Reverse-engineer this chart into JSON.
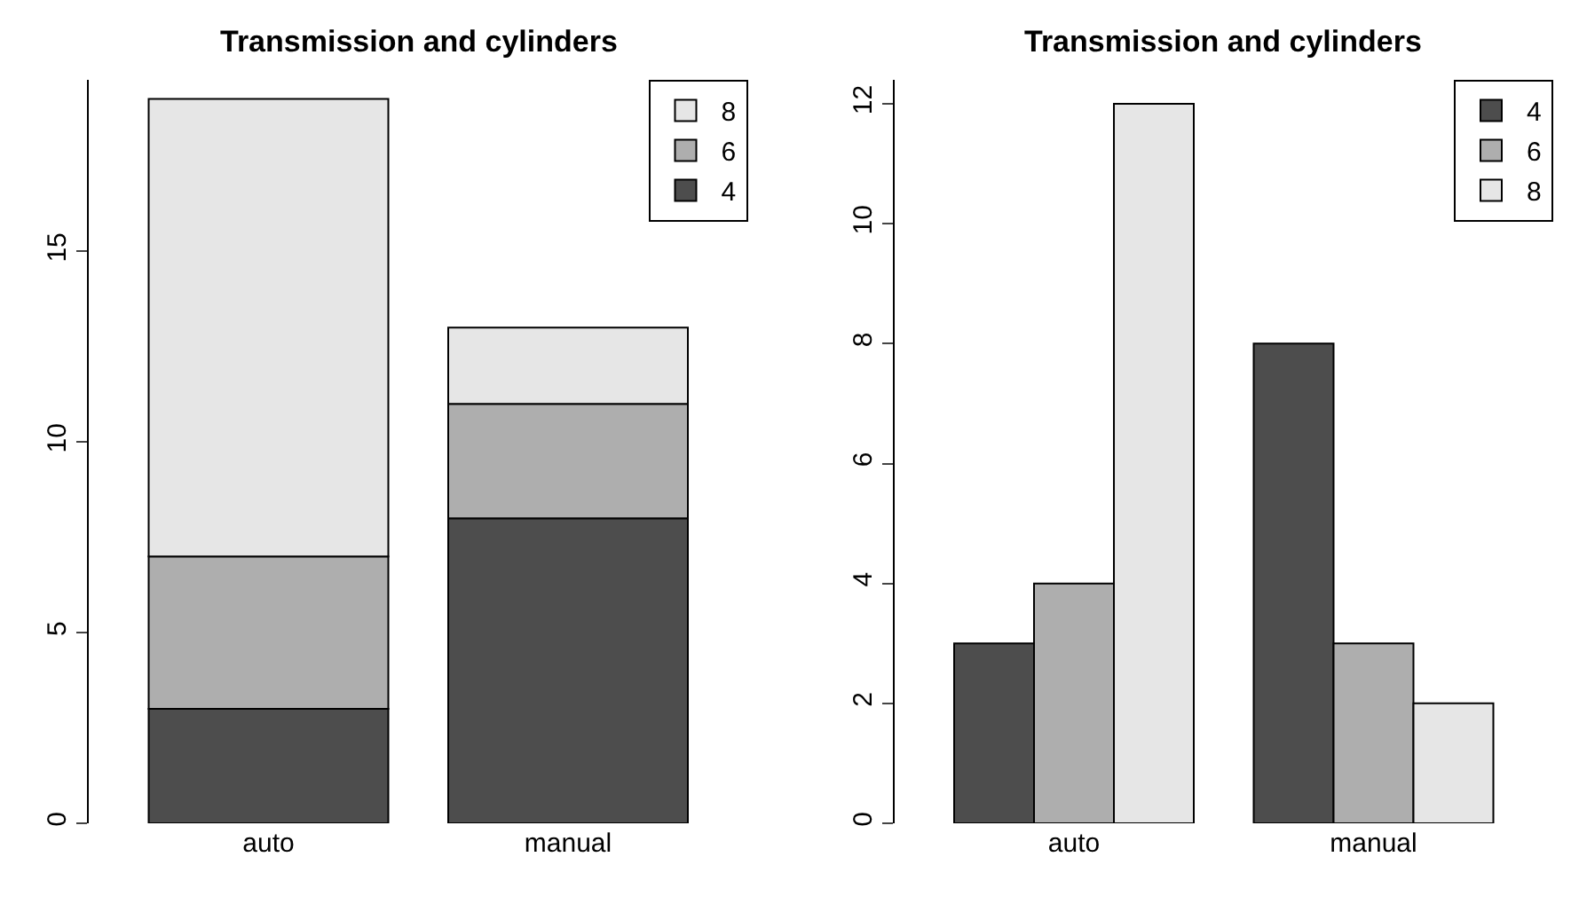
{
  "chart_data": [
    {
      "type": "bar",
      "title": "Transmission and cylinders",
      "stacked": true,
      "categories": [
        "auto",
        "manual"
      ],
      "ylim": [
        0,
        19.5
      ],
      "yticks": [
        0,
        5,
        10,
        15
      ],
      "grid": false,
      "legend": "top right",
      "series": [
        {
          "name": "4",
          "color": "#4d4d4d",
          "values": [
            3,
            8
          ]
        },
        {
          "name": "6",
          "color": "#aeaeae",
          "values": [
            4,
            3
          ]
        },
        {
          "name": "8",
          "color": "#e6e6e6",
          "values": [
            12,
            2
          ]
        }
      ]
    },
    {
      "type": "bar",
      "title": "Transmission and cylinders",
      "categories": [
        "auto",
        "manual"
      ],
      "ylim": [
        0,
        12.4
      ],
      "yticks": [
        0,
        2,
        4,
        6,
        8,
        10,
        12
      ],
      "grid": false,
      "legend": "top right",
      "series": [
        {
          "name": "4",
          "color": "#4d4d4d",
          "values": [
            3,
            8
          ]
        },
        {
          "name": "6",
          "color": "#aeaeae",
          "values": [
            4,
            3
          ]
        },
        {
          "name": "8",
          "color": "#e6e6e6",
          "values": [
            12,
            2
          ]
        }
      ]
    }
  ]
}
